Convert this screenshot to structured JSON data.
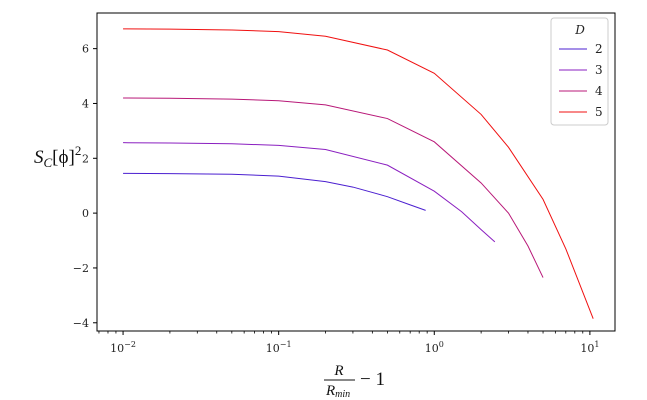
{
  "chart_data": {
    "type": "line",
    "x_scale": "log",
    "xlim": [
      0.0068,
      14.5
    ],
    "ylim": [
      -4.3,
      7.3
    ],
    "grid": false,
    "legend_placement": "top-right",
    "legend_title": "D",
    "ylabel": {
      "main": "S",
      "sub": "C",
      "rest": "[ϕ]",
      "sup": "2"
    },
    "xlabel": {
      "numerator": "R",
      "denominator_main": "R",
      "denominator_sub": "min",
      "suffix": "− 1"
    },
    "y_ticks": [
      {
        "value": -4,
        "label": "−4"
      },
      {
        "value": -2,
        "label": "−2"
      },
      {
        "value": 0,
        "label": "0"
      },
      {
        "value": 2,
        "label": "2"
      },
      {
        "value": 4,
        "label": "4"
      },
      {
        "value": 6,
        "label": "6"
      }
    ],
    "x_ticks": [
      {
        "value": 0.01,
        "base": "10",
        "exp": "−2"
      },
      {
        "value": 0.1,
        "base": "10",
        "exp": "−1"
      },
      {
        "value": 1,
        "base": "10",
        "exp": "0"
      },
      {
        "value": 10,
        "base": "10",
        "exp": "1"
      }
    ],
    "series": [
      {
        "name": "2",
        "color": "#4b1fd0",
        "x": [
          0.01,
          0.02,
          0.05,
          0.1,
          0.2,
          0.3,
          0.5,
          0.7,
          0.88
        ],
        "y": [
          1.45,
          1.44,
          1.42,
          1.35,
          1.15,
          0.95,
          0.6,
          0.3,
          0.1
        ]
      },
      {
        "name": "3",
        "color": "#8a1fc0",
        "x": [
          0.01,
          0.02,
          0.05,
          0.1,
          0.2,
          0.5,
          1.0,
          1.5,
          2.0,
          2.45
        ],
        "y": [
          2.57,
          2.56,
          2.53,
          2.47,
          2.32,
          1.75,
          0.8,
          0.05,
          -0.6,
          -1.05
        ]
      },
      {
        "name": "4",
        "color": "#b81878",
        "x": [
          0.01,
          0.02,
          0.05,
          0.1,
          0.2,
          0.5,
          1.0,
          2.0,
          3.0,
          4.0,
          5.0
        ],
        "y": [
          4.2,
          4.19,
          4.16,
          4.1,
          3.95,
          3.45,
          2.6,
          1.1,
          0.0,
          -1.2,
          -2.35
        ]
      },
      {
        "name": "5",
        "color": "#f01010",
        "x": [
          0.01,
          0.02,
          0.05,
          0.1,
          0.2,
          0.5,
          1.0,
          2.0,
          3.0,
          5.0,
          7.0,
          10.5
        ],
        "y": [
          6.72,
          6.71,
          6.68,
          6.62,
          6.45,
          5.95,
          5.1,
          3.6,
          2.4,
          0.5,
          -1.3,
          -3.85
        ]
      }
    ]
  }
}
